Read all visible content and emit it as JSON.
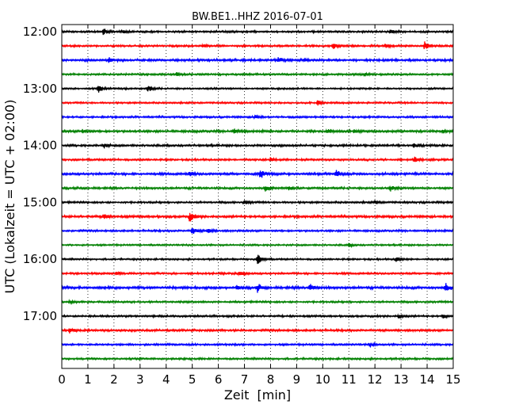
{
  "chart_data": {
    "type": "line",
    "title": "BW.BE1..HHZ 2016-07-01",
    "xlabel": "Zeit  [min]",
    "ylabel": "UTC (Lokalzeit = UTC + 02:00)",
    "xlim": [
      0,
      15
    ],
    "x_ticks": [
      "0",
      "1",
      "2",
      "3",
      "4",
      "5",
      "6",
      "7",
      "8",
      "9",
      "10",
      "11",
      "12",
      "13",
      "14",
      "15"
    ],
    "y_tick_labels": [
      "12:00",
      "13:00",
      "14:00",
      "15:00",
      "16:00",
      "17:00"
    ],
    "grid": "vertical dotted",
    "color_cycle": [
      "#000000",
      "#ff0000",
      "#0000ff",
      "#008000"
    ],
    "traces": [
      {
        "start": "12:00",
        "amp": 1.0,
        "events": [
          [
            1.6,
            5
          ],
          [
            2.3,
            2
          ],
          [
            12.6,
            3
          ]
        ]
      },
      {
        "start": "12:15",
        "amp": 1.0,
        "events": [
          [
            5.4,
            2
          ],
          [
            10.4,
            3.5
          ],
          [
            12.4,
            2
          ],
          [
            13.9,
            5
          ]
        ]
      },
      {
        "start": "12:30",
        "amp": 1.2,
        "events": [
          [
            1.8,
            3
          ],
          [
            8.3,
            3.5
          ],
          [
            9.3,
            2
          ]
        ]
      },
      {
        "start": "12:45",
        "amp": 1.0,
        "events": [
          [
            4.4,
            2.5
          ],
          [
            11.6,
            2.5
          ]
        ]
      },
      {
        "start": "13:00",
        "amp": 0.9,
        "events": [
          [
            1.4,
            5
          ],
          [
            3.3,
            5
          ]
        ]
      },
      {
        "start": "13:15",
        "amp": 0.9,
        "events": [
          [
            9.8,
            3
          ]
        ]
      },
      {
        "start": "13:30",
        "amp": 1.0,
        "events": [
          [
            7.4,
            2.5
          ]
        ]
      },
      {
        "start": "13:45",
        "amp": 1.2,
        "events": [
          [
            0.8,
            2
          ],
          [
            6.6,
            3.5
          ],
          [
            10.2,
            2.5
          ],
          [
            11.2,
            2
          ],
          [
            14.6,
            2
          ]
        ]
      },
      {
        "start": "14:00",
        "amp": 1.1,
        "events": [
          [
            1.6,
            3
          ],
          [
            13.5,
            3
          ]
        ]
      },
      {
        "start": "14:15",
        "amp": 1.0,
        "events": [
          [
            8.0,
            2.5
          ],
          [
            13.5,
            4
          ]
        ]
      },
      {
        "start": "14:30",
        "amp": 1.2,
        "events": [
          [
            7.6,
            8
          ],
          [
            10.5,
            5
          ],
          [
            4.9,
            3
          ]
        ]
      },
      {
        "start": "14:45",
        "amp": 1.1,
        "events": [
          [
            7.8,
            4
          ],
          [
            8.7,
            2.5
          ],
          [
            12.6,
            3
          ]
        ]
      },
      {
        "start": "15:00",
        "amp": 1.0,
        "events": [
          [
            7.0,
            3
          ],
          [
            12.0,
            2
          ]
        ]
      },
      {
        "start": "15:15",
        "amp": 1.2,
        "events": [
          [
            4.9,
            7
          ],
          [
            1.6,
            3
          ]
        ]
      },
      {
        "start": "15:30",
        "amp": 1.0,
        "events": [
          [
            5.0,
            6
          ],
          [
            5.6,
            3
          ]
        ]
      },
      {
        "start": "15:45",
        "amp": 0.9,
        "events": [
          [
            11.0,
            2
          ]
        ]
      },
      {
        "start": "16:00",
        "amp": 0.9,
        "events": [
          [
            7.5,
            8
          ],
          [
            12.8,
            4
          ]
        ]
      },
      {
        "start": "16:15",
        "amp": 1.0,
        "events": [
          [
            6.8,
            3
          ],
          [
            2.1,
            2
          ]
        ]
      },
      {
        "start": "16:30",
        "amp": 1.3,
        "events": [
          [
            7.5,
            5
          ],
          [
            9.5,
            6
          ],
          [
            14.7,
            6
          ],
          [
            6.7,
            2.5
          ]
        ]
      },
      {
        "start": "16:45",
        "amp": 1.0,
        "events": [
          [
            0.3,
            1.5
          ]
        ]
      },
      {
        "start": "17:00",
        "amp": 1.0,
        "events": [
          [
            12.9,
            3
          ],
          [
            14.6,
            3
          ]
        ]
      },
      {
        "start": "17:15",
        "amp": 1.1,
        "events": [
          [
            0.3,
            4
          ]
        ]
      },
      {
        "start": "17:30",
        "amp": 1.0,
        "events": [
          [
            11.8,
            3
          ]
        ]
      },
      {
        "start": "17:45",
        "amp": 1.0,
        "events": []
      }
    ]
  }
}
